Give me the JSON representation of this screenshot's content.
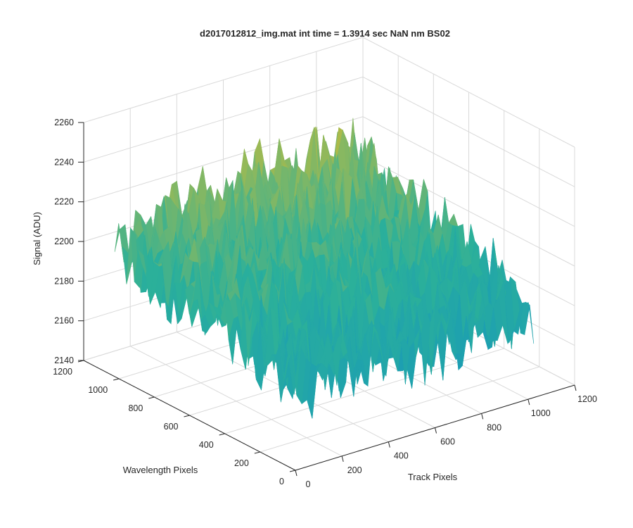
{
  "window": {
    "title": "d2017012812_img.mat int time = 1.3914 sec  NaN nm BS02"
  },
  "chart_data": {
    "type": "surface",
    "title": "d2017012812_img.mat int time = 1.3914 sec  NaN nm BS02",
    "xlabel": "Track Pixels",
    "ylabel": "Wavelength Pixels",
    "zlabel": "Signal (ADU)",
    "xlim": [
      0,
      1200
    ],
    "ylim": [
      0,
      1200
    ],
    "zlim": [
      2140,
      2260
    ],
    "xticks": [
      "0",
      "200",
      "400",
      "600",
      "800",
      "1000",
      "1200"
    ],
    "yticks": [
      "0",
      "200",
      "400",
      "600",
      "800",
      "1000",
      "1200"
    ],
    "zticks": [
      "2140",
      "2160",
      "2180",
      "2200",
      "2220",
      "2240",
      "2260"
    ],
    "grid": true,
    "colormap": "parula",
    "colors": {
      "low": "#0f8fc8",
      "mid": "#2bb09a",
      "high": "#f0c020",
      "axis": "#262626",
      "grid": "#d9d9d9"
    },
    "surface": {
      "x_range": [
        0,
        1024
      ],
      "y_range": [
        0,
        1024
      ],
      "mean_signal": 2197,
      "signal_range": [
        2150,
        2245
      ],
      "description_values": {
        "corner_x0_y1024": 2205,
        "corner_x1024_y1024": 2220,
        "corner_x1024_y0": 2180,
        "corner_x0_y0": 2185
      }
    }
  }
}
